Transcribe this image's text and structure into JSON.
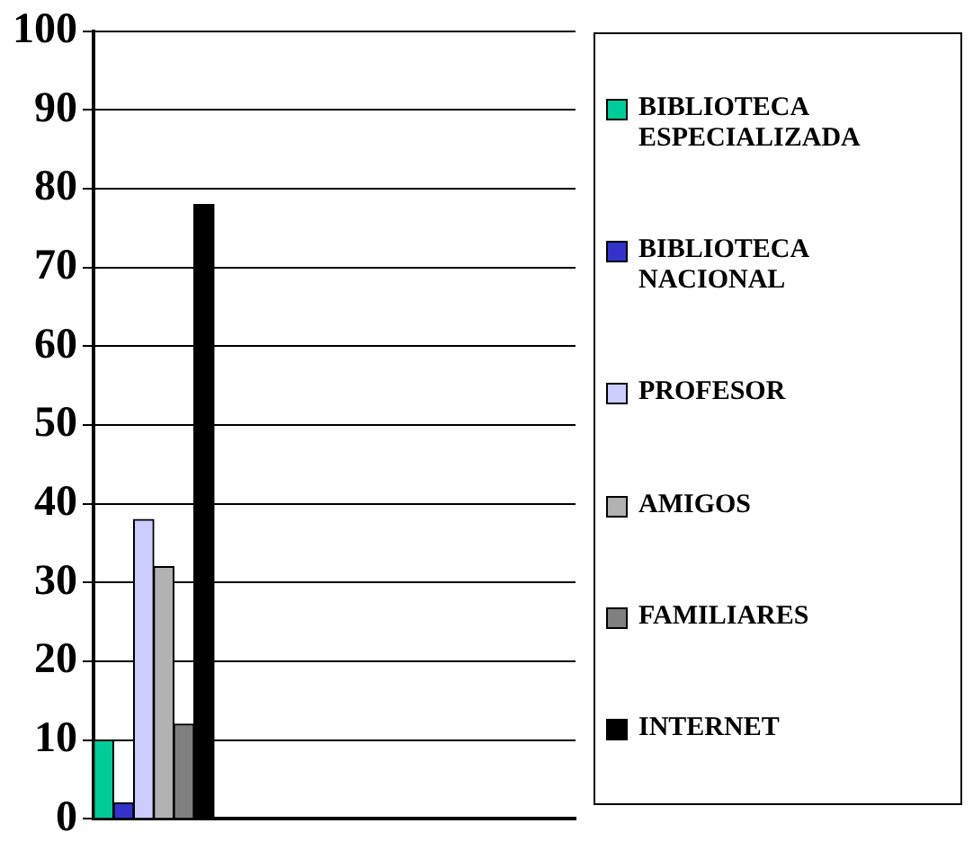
{
  "chart_data": {
    "type": "bar",
    "categories": [
      null,
      null,
      null,
      null
    ],
    "series": [
      {
        "name": "BIBLIOTECA ESPECIALIZADA",
        "color": "#00cc99",
        "values": [
          10,
          null,
          null,
          null
        ]
      },
      {
        "name": "BIBLIOTECA NACIONAL",
        "color": "#3333cc",
        "values": [
          2,
          null,
          null,
          null
        ]
      },
      {
        "name": "PROFESOR",
        "color": "#ccccff",
        "values": [
          38,
          null,
          null,
          null
        ]
      },
      {
        "name": "AMIGOS",
        "color": "#b2b2b2",
        "values": [
          32,
          null,
          null,
          null
        ]
      },
      {
        "name": "FAMILIARES",
        "color": "#808080",
        "values": [
          12,
          null,
          null,
          null
        ]
      },
      {
        "name": "INTERNET",
        "color": "#000000",
        "values": [
          78,
          null,
          null,
          null
        ]
      }
    ],
    "ylim": [
      0,
      100
    ],
    "yticks": [
      0,
      10,
      20,
      30,
      40,
      50,
      60,
      70,
      80,
      90,
      100
    ],
    "grid": "y",
    "legend": "right",
    "tick_labels": "y"
  }
}
